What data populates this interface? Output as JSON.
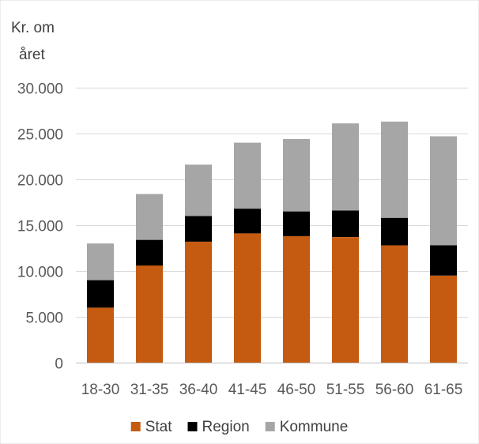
{
  "chart_data": {
    "type": "bar",
    "stacked": true,
    "ylabel": [
      "Kr. om",
      "året"
    ],
    "categories": [
      "18-30",
      "31-35",
      "36-40",
      "41-45",
      "46-50",
      "51-55",
      "56-60",
      "61-65"
    ],
    "series": [
      {
        "name": "Stat",
        "color": "#C55A11",
        "values": [
          6000,
          10600,
          13200,
          14100,
          13800,
          13700,
          12800,
          9500
        ]
      },
      {
        "name": "Region",
        "color": "#000000",
        "values": [
          3000,
          2800,
          2800,
          2700,
          2700,
          2900,
          3000,
          3300
        ]
      },
      {
        "name": "Kommune",
        "color": "#A6A6A6",
        "values": [
          4000,
          5000,
          5600,
          7200,
          7900,
          9500,
          10500,
          11900
        ]
      }
    ],
    "yticks": [
      0,
      5000,
      10000,
      15000,
      20000,
      25000,
      30000
    ],
    "ytick_labels": [
      "0",
      "5.000",
      "10.000",
      "15.000",
      "20.000",
      "25.000",
      "30.000"
    ],
    "ylim": [
      0,
      30000
    ],
    "grid": true,
    "legend_position": "bottom"
  }
}
